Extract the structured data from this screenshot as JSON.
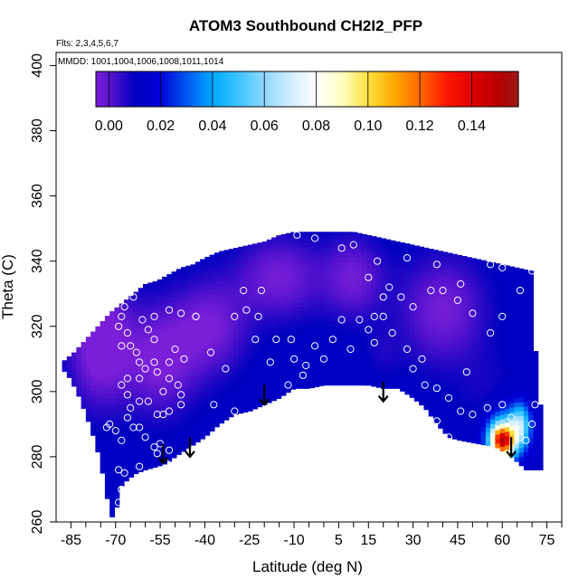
{
  "chart_data": {
    "type": "heatmap",
    "title": "ATOM3 Southbound CH2I2_PFP",
    "flights_note": "Flts: 2,3,4,5,6,7",
    "dates_note": "MMDD: 1001,1004,1006,1008,1011,1014",
    "xlabel": "Latitude (deg N)",
    "ylabel": "Theta (C)",
    "xlim": [
      -90,
      80
    ],
    "ylim": [
      260,
      404
    ],
    "x_ticks": [
      {
        "value": -85,
        "label": "-85"
      },
      {
        "value": -70,
        "label": "-70"
      },
      {
        "value": -55,
        "label": "-55"
      },
      {
        "value": -40,
        "label": "-40"
      },
      {
        "value": -25,
        "label": "-25"
      },
      {
        "value": -10,
        "label": "-10"
      },
      {
        "value": 5,
        "label": "5"
      },
      {
        "value": 15,
        "label": "15"
      },
      {
        "value": 30,
        "label": "30"
      },
      {
        "value": 45,
        "label": "45"
      },
      {
        "value": 60,
        "label": "60"
      },
      {
        "value": 75,
        "label": "75"
      }
    ],
    "x_minor_ticks": [
      -80,
      -75,
      -65,
      -60,
      -50,
      -45,
      -35,
      -30,
      -20,
      -15,
      -5,
      0,
      10,
      20,
      25,
      35,
      40,
      50,
      55,
      65,
      70,
      80
    ],
    "y_ticks": [
      {
        "value": 260,
        "label": "260"
      },
      {
        "value": 280,
        "label": "280"
      },
      {
        "value": 300,
        "label": "300"
      },
      {
        "value": 320,
        "label": "320"
      },
      {
        "value": 340,
        "label": "340"
      },
      {
        "value": 360,
        "label": "360"
      },
      {
        "value": 380,
        "label": "380"
      },
      {
        "value": 400,
        "label": "400"
      }
    ],
    "colorbar": {
      "range": [
        -0.005,
        0.158
      ],
      "ticks": [
        {
          "value": 0.0,
          "label": "0.00"
        },
        {
          "value": 0.02,
          "label": "0.02"
        },
        {
          "value": 0.04,
          "label": "0.04"
        },
        {
          "value": 0.06,
          "label": "0.06"
        },
        {
          "value": 0.08,
          "label": "0.08"
        },
        {
          "value": 0.1,
          "label": "0.10"
        },
        {
          "value": 0.12,
          "label": "0.12"
        },
        {
          "value": 0.14,
          "label": "0.14"
        }
      ],
      "stops": [
        {
          "v": -0.005,
          "color": "#7a1fd8"
        },
        {
          "v": 0.002,
          "color": "#4c10cc"
        },
        {
          "v": 0.01,
          "color": "#0000c0"
        },
        {
          "v": 0.02,
          "color": "#0000d8"
        },
        {
          "v": 0.03,
          "color": "#0058f0"
        },
        {
          "v": 0.04,
          "color": "#00a8ff"
        },
        {
          "v": 0.05,
          "color": "#3cc4ff"
        },
        {
          "v": 0.06,
          "color": "#90d8ff"
        },
        {
          "v": 0.07,
          "color": "#d2ecff"
        },
        {
          "v": 0.08,
          "color": "#ffffff"
        },
        {
          "v": 0.09,
          "color": "#ffffc0"
        },
        {
          "v": 0.1,
          "color": "#ffe040"
        },
        {
          "v": 0.11,
          "color": "#ffa800"
        },
        {
          "v": 0.12,
          "color": "#ff6a00"
        },
        {
          "v": 0.13,
          "color": "#ff1800"
        },
        {
          "v": 0.14,
          "color": "#e00000"
        },
        {
          "v": 0.15,
          "color": "#b80000"
        },
        {
          "v": 0.158,
          "color": "#9c1818"
        }
      ]
    },
    "region_top": [
      [
        -88,
        309
      ],
      [
        -84,
        312
      ],
      [
        -80,
        316
      ],
      [
        -76,
        320
      ],
      [
        -72,
        324
      ],
      [
        -68,
        327
      ],
      [
        -64,
        330
      ],
      [
        -60,
        333
      ],
      [
        -56,
        334
      ],
      [
        -52,
        336
      ],
      [
        -48,
        338
      ],
      [
        -44,
        339
      ],
      [
        -40,
        341
      ],
      [
        -35,
        343
      ],
      [
        -30,
        344
      ],
      [
        -25,
        345
      ],
      [
        -20,
        346
      ],
      [
        -15,
        348
      ],
      [
        -10,
        349
      ],
      [
        0,
        349
      ],
      [
        10,
        349
      ],
      [
        20,
        347
      ],
      [
        25,
        346
      ],
      [
        30,
        345
      ],
      [
        35,
        344
      ],
      [
        40,
        343
      ],
      [
        45,
        342
      ],
      [
        50,
        341
      ],
      [
        55,
        340
      ],
      [
        60,
        339
      ],
      [
        65,
        338
      ],
      [
        70,
        337
      ],
      [
        72,
        296
      ]
    ],
    "region_bottom": [
      [
        72,
        276
      ],
      [
        68,
        276
      ],
      [
        63,
        280
      ],
      [
        58,
        283
      ],
      [
        52,
        284
      ],
      [
        46,
        285
      ],
      [
        42,
        286
      ],
      [
        38,
        290
      ],
      [
        34,
        295
      ],
      [
        30,
        298
      ],
      [
        25,
        301
      ],
      [
        20,
        301
      ],
      [
        15,
        302
      ],
      [
        10,
        302
      ],
      [
        5,
        302
      ],
      [
        0,
        302
      ],
      [
        -5,
        301
      ],
      [
        -10,
        301
      ],
      [
        -15,
        298
      ],
      [
        -20,
        296
      ],
      [
        -25,
        294
      ],
      [
        -30,
        293
      ],
      [
        -35,
        290
      ],
      [
        -40,
        286
      ],
      [
        -45,
        283
      ],
      [
        -50,
        280
      ],
      [
        -53,
        278
      ],
      [
        -56,
        277
      ],
      [
        -60,
        276
      ],
      [
        -63,
        275
      ],
      [
        -66,
        273
      ],
      [
        -68,
        271
      ],
      [
        -69,
        267
      ],
      [
        -70,
        263
      ],
      [
        -71,
        261
      ],
      [
        -72,
        264
      ],
      [
        -73,
        268
      ],
      [
        -74,
        273
      ],
      [
        -75,
        278
      ],
      [
        -77,
        285
      ],
      [
        -80,
        293
      ],
      [
        -83,
        300
      ],
      [
        -86,
        305
      ],
      [
        -88,
        307
      ]
    ],
    "background_value": 0.012,
    "features": [
      {
        "lat": -75,
        "theta": 315,
        "slat": 10,
        "stheta": 18,
        "value": -0.01
      },
      {
        "lat": -55,
        "theta": 310,
        "slat": 12,
        "stheta": 16,
        "value": -0.006
      },
      {
        "lat": -38,
        "theta": 320,
        "slat": 12,
        "stheta": 14,
        "value": -0.004
      },
      {
        "lat": -15,
        "theta": 335,
        "slat": 14,
        "stheta": 12,
        "value": -0.004
      },
      {
        "lat": 10,
        "theta": 335,
        "slat": 10,
        "stheta": 12,
        "value": -0.003
      },
      {
        "lat": 40,
        "theta": 325,
        "slat": 14,
        "stheta": 16,
        "value": -0.004
      },
      {
        "lat": 20,
        "theta": 312,
        "slat": 6,
        "stheta": 8,
        "value": 0.008
      },
      {
        "lat": 55,
        "theta": 300,
        "slat": 10,
        "stheta": 12,
        "value": 0.008
      },
      {
        "lat": 62,
        "theta": 288,
        "slat": 7,
        "stheta": 8,
        "value": 0.04
      },
      {
        "lat": 60,
        "theta": 285,
        "slat": 4,
        "stheta": 5,
        "value": 0.13
      },
      {
        "lat": 66,
        "theta": 290,
        "slat": 3,
        "stheta": 6,
        "value": 0.05
      }
    ],
    "samples": [
      [
        -64,
        329
      ],
      [
        -67,
        326
      ],
      [
        -68,
        323
      ],
      [
        -69,
        320
      ],
      [
        -66,
        318
      ],
      [
        -68,
        314
      ],
      [
        -65,
        314
      ],
      [
        -63,
        312
      ],
      [
        -62,
        309
      ],
      [
        -60,
        307
      ],
      [
        -62,
        304
      ],
      [
        -66,
        304
      ],
      [
        -68,
        302
      ],
      [
        -66,
        299
      ],
      [
        -62,
        297
      ],
      [
        -65,
        295
      ],
      [
        -66,
        292
      ],
      [
        -64,
        289
      ],
      [
        -62,
        289
      ],
      [
        -68,
        285
      ],
      [
        -70,
        288
      ],
      [
        -73,
        289
      ],
      [
        -72,
        290
      ],
      [
        -69,
        276
      ],
      [
        -67,
        275
      ],
      [
        -68,
        270
      ],
      [
        -69,
        266
      ],
      [
        -62,
        277
      ],
      [
        -58,
        275
      ],
      [
        -56,
        281
      ],
      [
        -52,
        282
      ],
      [
        -53,
        278
      ],
      [
        -55,
        284
      ],
      [
        -57,
        283
      ],
      [
        -60,
        286
      ],
      [
        -56,
        293
      ],
      [
        -54,
        293
      ],
      [
        -52,
        294
      ],
      [
        -59,
        297
      ],
      [
        -54,
        300
      ],
      [
        -48,
        296
      ],
      [
        -48,
        299
      ],
      [
        -49,
        302
      ],
      [
        -52,
        304
      ],
      [
        -56,
        306
      ],
      [
        -57,
        309
      ],
      [
        -52,
        309
      ],
      [
        -47,
        310
      ],
      [
        -50,
        313
      ],
      [
        -57,
        316
      ],
      [
        -59,
        319
      ],
      [
        -61,
        322
      ],
      [
        -57,
        323
      ],
      [
        -52,
        325
      ],
      [
        -48,
        324
      ],
      [
        -43,
        323
      ],
      [
        -38,
        312
      ],
      [
        -33,
        307
      ],
      [
        -30,
        294
      ],
      [
        -37,
        296
      ],
      [
        -43,
        323
      ],
      [
        -30,
        323
      ],
      [
        -26,
        325
      ],
      [
        -22,
        323
      ],
      [
        -27,
        331
      ],
      [
        -21,
        331
      ],
      [
        -23,
        316
      ],
      [
        -16,
        316
      ],
      [
        -11,
        316
      ],
      [
        -18,
        309
      ],
      [
        -10,
        310
      ],
      [
        -3,
        314
      ],
      [
        -6,
        308
      ],
      [
        -12,
        302
      ],
      [
        -7,
        305
      ],
      [
        0,
        310
      ],
      [
        3,
        316
      ],
      [
        6,
        322
      ],
      [
        12,
        322
      ],
      [
        17,
        323
      ],
      [
        20,
        323
      ],
      [
        15,
        319
      ],
      [
        9,
        313
      ],
      [
        17,
        315
      ],
      [
        23,
        318
      ],
      [
        28,
        313
      ],
      [
        33,
        310
      ],
      [
        30,
        307
      ],
      [
        34,
        302
      ],
      [
        38,
        301
      ],
      [
        42,
        298
      ],
      [
        46,
        294
      ],
      [
        50,
        293
      ],
      [
        55,
        295
      ],
      [
        60,
        296
      ],
      [
        63,
        292
      ],
      [
        66,
        286
      ],
      [
        68,
        285
      ],
      [
        70,
        290
      ],
      [
        71,
        296
      ],
      [
        50,
        324
      ],
      [
        45,
        328
      ],
      [
        40,
        331
      ],
      [
        36,
        331
      ],
      [
        30,
        326
      ],
      [
        26,
        329
      ],
      [
        22,
        332
      ],
      [
        20,
        329
      ],
      [
        15,
        335
      ],
      [
        6,
        344
      ],
      [
        -3,
        347
      ],
      [
        -9,
        348
      ],
      [
        10,
        345
      ],
      [
        18,
        340
      ],
      [
        28,
        341
      ],
      [
        38,
        339
      ],
      [
        46,
        333
      ],
      [
        56,
        339
      ],
      [
        60,
        338
      ],
      [
        70,
        337
      ],
      [
        66,
        331
      ],
      [
        60,
        323
      ],
      [
        56,
        318
      ],
      [
        48,
        306
      ],
      [
        42,
        286
      ],
      [
        38,
        291
      ],
      [
        32,
        291
      ]
    ],
    "arrows": [
      [
        -54,
        284
      ],
      [
        -45,
        286
      ],
      [
        -20,
        302
      ],
      [
        20,
        303
      ],
      [
        63,
        286
      ]
    ]
  }
}
